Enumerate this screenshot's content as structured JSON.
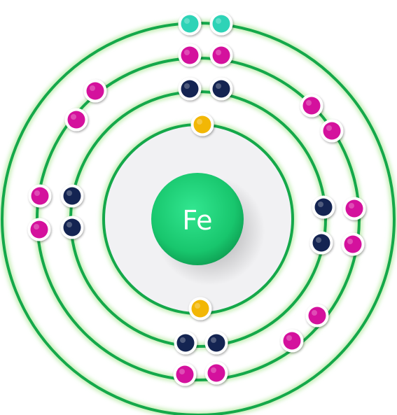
{
  "atom": {
    "symbol": "Fe"
  },
  "colors": {
    "shell": "#14a84a",
    "shell_glow": "#c7efb8",
    "core_disk": "#f1f1f3",
    "nucleus": "#1fd17a",
    "nucleus_dark": "#0d9a4f",
    "electron_outline": "#ffffff"
  },
  "shells": [
    {
      "name": "shell-1",
      "electrons": [
        {
          "kind": "s",
          "color": "#f2b705"
        },
        {
          "kind": "s",
          "color": "#f2b705"
        }
      ]
    },
    {
      "name": "shell-2",
      "electrons": [
        {
          "kind": "p",
          "color": "#142452"
        },
        {
          "kind": "p",
          "color": "#142452"
        },
        {
          "kind": "p",
          "color": "#142452"
        },
        {
          "kind": "p",
          "color": "#142452"
        },
        {
          "kind": "p",
          "color": "#142452"
        },
        {
          "kind": "p",
          "color": "#142452"
        },
        {
          "kind": "p",
          "color": "#142452"
        },
        {
          "kind": "p",
          "color": "#142452"
        }
      ]
    },
    {
      "name": "shell-3",
      "electrons": [
        {
          "kind": "d",
          "color": "#d4119d"
        },
        {
          "kind": "d",
          "color": "#d4119d"
        },
        {
          "kind": "d",
          "color": "#d4119d"
        },
        {
          "kind": "d",
          "color": "#d4119d"
        },
        {
          "kind": "d",
          "color": "#d4119d"
        },
        {
          "kind": "d",
          "color": "#d4119d"
        },
        {
          "kind": "d",
          "color": "#d4119d"
        },
        {
          "kind": "d",
          "color": "#d4119d"
        },
        {
          "kind": "d",
          "color": "#d4119d"
        },
        {
          "kind": "d",
          "color": "#d4119d"
        },
        {
          "kind": "d",
          "color": "#d4119d"
        },
        {
          "kind": "d",
          "color": "#d4119d"
        },
        {
          "kind": "d",
          "color": "#d4119d"
        },
        {
          "kind": "d",
          "color": "#d4119d"
        }
      ]
    },
    {
      "name": "shell-4",
      "electrons": [
        {
          "kind": "valence",
          "color": "#2ed3b7"
        },
        {
          "kind": "valence",
          "color": "#2ed3b7"
        }
      ]
    }
  ]
}
